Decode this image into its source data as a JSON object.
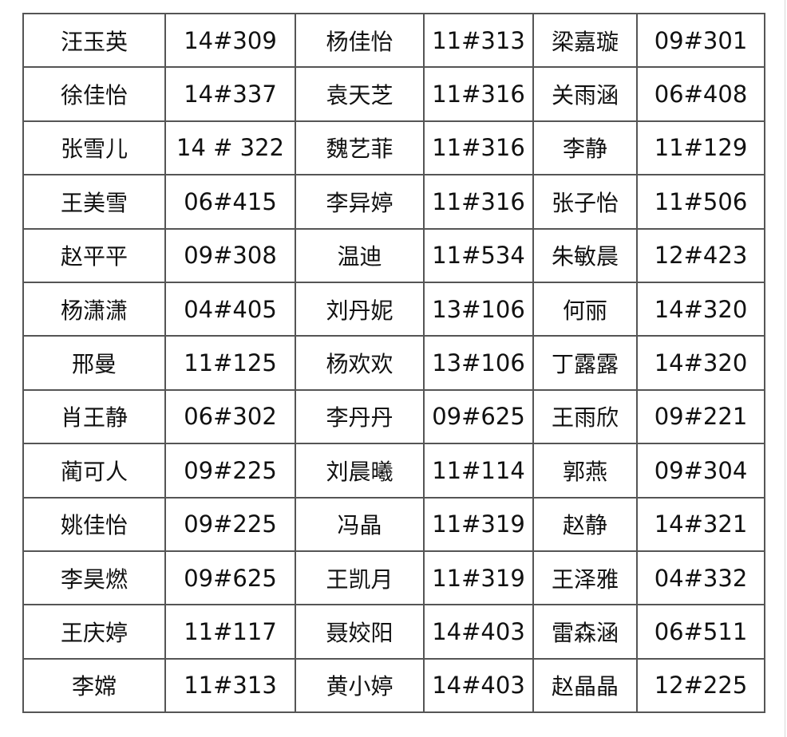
{
  "table": {
    "rows": [
      [
        "汪玉英",
        "14#309",
        "杨佳怡",
        "11#313",
        "梁嘉璇",
        "09#301"
      ],
      [
        "徐佳怡",
        "14#337",
        "袁天芝",
        "11#316",
        "关雨涵",
        "06#408"
      ],
      [
        "张雪儿",
        "14 # 322",
        "魏艺菲",
        "11#316",
        "李静",
        "11#129"
      ],
      [
        "王美雪",
        "06#415",
        "李异婷",
        "11#316",
        "张子怡",
        "11#506"
      ],
      [
        "赵平平",
        "09#308",
        "温迪",
        "11#534",
        "朱敏晨",
        "12#423"
      ],
      [
        "杨潇潇",
        "04#405",
        "刘丹妮",
        "13#106",
        "何丽",
        "14#320"
      ],
      [
        "邢曼",
        "11#125",
        "杨欢欢",
        "13#106",
        "丁露露",
        "14#320"
      ],
      [
        "肖王静",
        "06#302",
        "李丹丹",
        "09#625",
        "王雨欣",
        "09#221"
      ],
      [
        "蔺可人",
        "09#225",
        "刘晨曦",
        "11#114",
        "郭燕",
        "09#304"
      ],
      [
        "姚佳怡",
        "09#225",
        "冯晶",
        "11#319",
        "赵静",
        "14#321"
      ],
      [
        "李昊燃",
        "09#625",
        "王凯月",
        "11#319",
        "王泽雅",
        "04#332"
      ],
      [
        "王庆婷",
        "11#117",
        "聂姣阳",
        "14#403",
        "雷森涵",
        "06#511"
      ],
      [
        "李嫦",
        "11#313",
        "黄小婷",
        "14#403",
        "赵晶晶",
        "12#225"
      ]
    ]
  }
}
